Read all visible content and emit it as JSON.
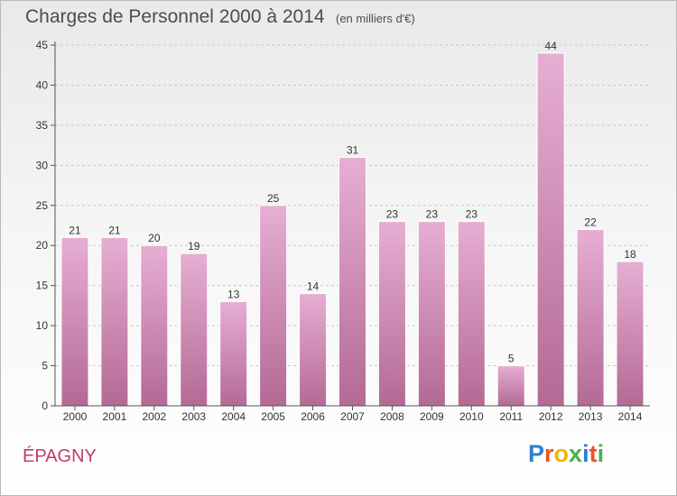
{
  "title": "Charges de Personnel 2000 à 2014",
  "subtitle": "(en milliers d'€)",
  "commune": "ÉPAGNY",
  "logo": {
    "letters": [
      "P",
      "r",
      "o",
      "x",
      "i",
      "t",
      "i"
    ],
    "colors": [
      "#2e7fd1",
      "#e8552b",
      "#f2b705",
      "#4caf50",
      "#2e7fd1",
      "#e8552b",
      "#4caf50"
    ]
  },
  "colors": {
    "bar_top": "#e7aed3",
    "bar_bottom": "#b36a95",
    "axis": "#555555",
    "grid": "#c8c8c8",
    "text": "#333333"
  },
  "chart_data": {
    "type": "bar",
    "title": "Charges de Personnel 2000 à 2014",
    "subtitle": "(en milliers d'€)",
    "categories": [
      "2000",
      "2001",
      "2002",
      "2003",
      "2004",
      "2005",
      "2006",
      "2007",
      "2008",
      "2009",
      "2010",
      "2011",
      "2012",
      "2013",
      "2014"
    ],
    "values": [
      21,
      21,
      20,
      19,
      13,
      25,
      14,
      31,
      23,
      23,
      23,
      5,
      44,
      22,
      18
    ],
    "ylim": [
      0,
      45
    ],
    "yticks": [
      0,
      5,
      10,
      15,
      20,
      25,
      30,
      35,
      40,
      45
    ],
    "grid": "horizontal dashed",
    "legend": "none"
  }
}
